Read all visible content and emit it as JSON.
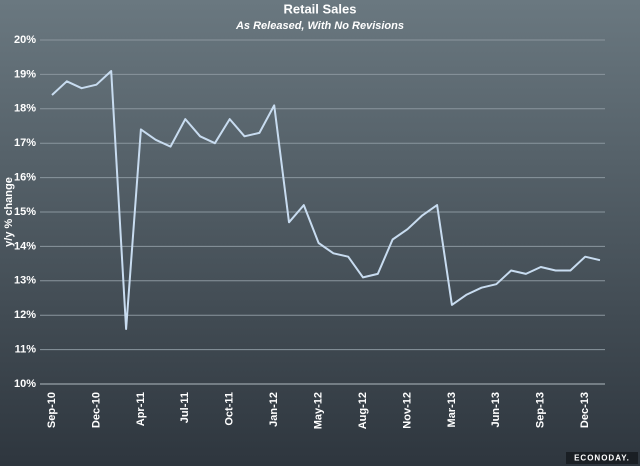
{
  "chart_data": {
    "type": "line",
    "title": "Retail Sales",
    "subtitle": "As Released, With No Revisions",
    "y_label": "y/y % change",
    "watermark": "ECONODAY.",
    "categories": [
      "Sep-10",
      null,
      null,
      "Dec-10",
      null,
      null,
      "Apr-11",
      null,
      null,
      "Jul-11",
      null,
      null,
      "Oct-11",
      null,
      null,
      "Jan-12",
      null,
      null,
      "May-12",
      null,
      null,
      "Aug-12",
      null,
      null,
      "Nov-12",
      null,
      null,
      "Mar-13",
      null,
      null,
      "Jun-13",
      null,
      null,
      "Sep-13",
      null,
      null,
      "Dec-13",
      null
    ],
    "series": [
      {
        "color": "#c8dcf0",
        "values": [
          18.4,
          18.8,
          18.6,
          18.7,
          19.1,
          11.6,
          17.4,
          17.1,
          16.9,
          17.7,
          17.2,
          17.0,
          17.7,
          17.2,
          17.3,
          18.1,
          14.7,
          15.2,
          14.1,
          13.8,
          13.7,
          13.1,
          13.2,
          14.2,
          14.5,
          14.9,
          15.2,
          12.3,
          12.6,
          12.8,
          12.9,
          13.3,
          13.2,
          13.4,
          13.3,
          13.3,
          13.7,
          13.6
        ]
      }
    ],
    "ylim": [
      10,
      20
    ],
    "yticks": [
      {
        "value": 10,
        "label": "10%"
      },
      {
        "value": 11,
        "label": "11%"
      },
      {
        "value": 12,
        "label": "12%"
      },
      {
        "value": 13,
        "label": "13%"
      },
      {
        "value": 14,
        "label": "14%"
      },
      {
        "value": 15,
        "label": "15%"
      },
      {
        "value": 16,
        "label": "16%"
      },
      {
        "value": 17,
        "label": "17%"
      },
      {
        "value": 18,
        "label": "18%"
      },
      {
        "value": 19,
        "label": "19%"
      },
      {
        "value": 20,
        "label": "20%"
      }
    ],
    "grid": true
  }
}
